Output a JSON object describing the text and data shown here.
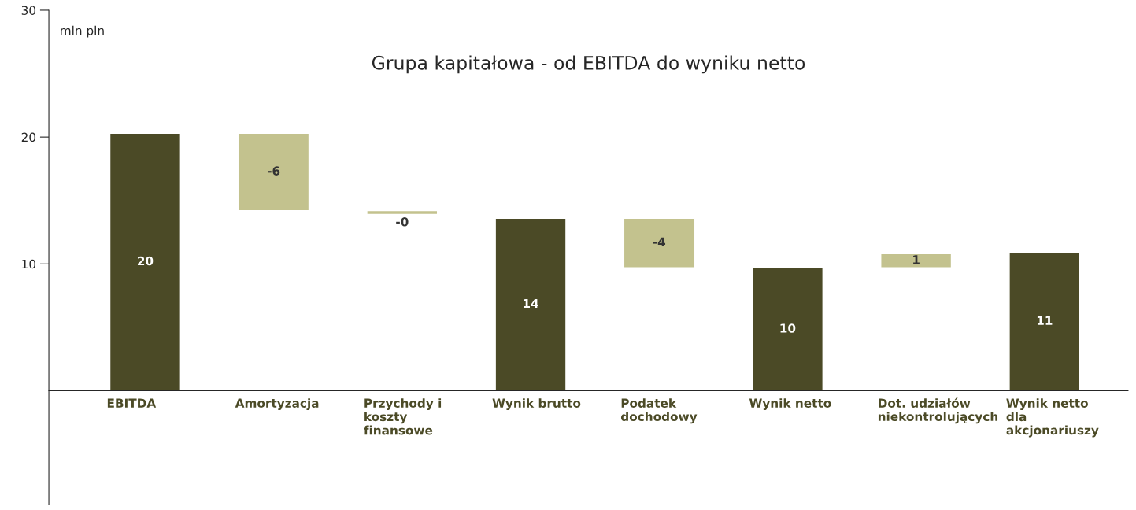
{
  "chart_data": {
    "type": "bar",
    "title": "Grupa kapitałowa - od EBITDA do wyniku netto",
    "ylabel": "mln pln",
    "categories": [
      "EBITDA",
      "Amortyzacja",
      "Przychody i\nkoszty\nfinansowe",
      "Wynik brutto",
      "Podatek\ndochodowy",
      "Wynik netto",
      "Dot. udziałów\nniekontrolujących",
      "Wynik netto\ndla\nakcjonariuszy"
    ],
    "values": [
      20.3,
      -6.1,
      -0.3,
      13.6,
      -3.9,
      9.7,
      1.1,
      10.9
    ],
    "base": [
      0,
      20.3,
      14.2,
      0,
      13.6,
      0,
      9.7,
      0
    ],
    "colors": [
      "#4b4a26",
      "#c3c28e",
      "#c3c28e",
      "#4b4a26",
      "#c3c28e",
      "#4b4a26",
      "#c3c28e",
      "#4b4a26"
    ],
    "value_labels": [
      "20",
      "-6",
      "-0",
      "14",
      "-4",
      "10",
      "1",
      "11"
    ],
    "ylim": [
      -9,
      30
    ],
    "yticks": [
      10,
      20,
      30
    ],
    "grid": false,
    "legend": false
  }
}
